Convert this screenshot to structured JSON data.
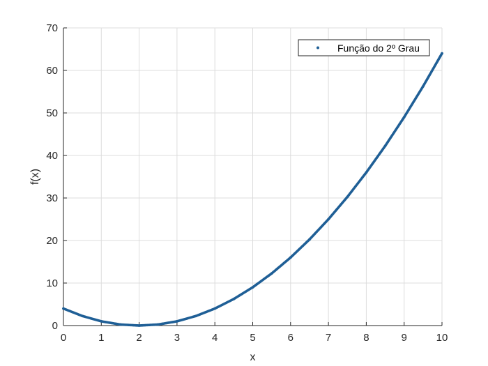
{
  "chart_data": {
    "type": "scatter",
    "title": "",
    "xlabel": "x",
    "ylabel": "f(x)",
    "xlim": [
      0,
      10
    ],
    "ylim": [
      0,
      70
    ],
    "xticks": [
      0,
      1,
      2,
      3,
      4,
      5,
      6,
      7,
      8,
      9,
      10
    ],
    "yticks": [
      0,
      10,
      20,
      30,
      40,
      50,
      60,
      70
    ],
    "grid": true,
    "legend_position": "top-right",
    "series": [
      {
        "name": "Função do 2º Grau",
        "color": "#1f5f96",
        "marker": "point",
        "x": [
          0,
          0.5,
          1,
          1.5,
          2,
          2.5,
          3,
          3.5,
          4,
          4.5,
          5,
          5.5,
          6,
          6.5,
          7,
          7.5,
          8,
          8.5,
          9,
          9.5,
          10
        ],
        "y": [
          4,
          2.25,
          1,
          0.25,
          0,
          0.25,
          1,
          2.25,
          4,
          6.25,
          9,
          12.25,
          16,
          20.25,
          25,
          30.25,
          36,
          42.25,
          49,
          56.25,
          64
        ]
      }
    ]
  }
}
